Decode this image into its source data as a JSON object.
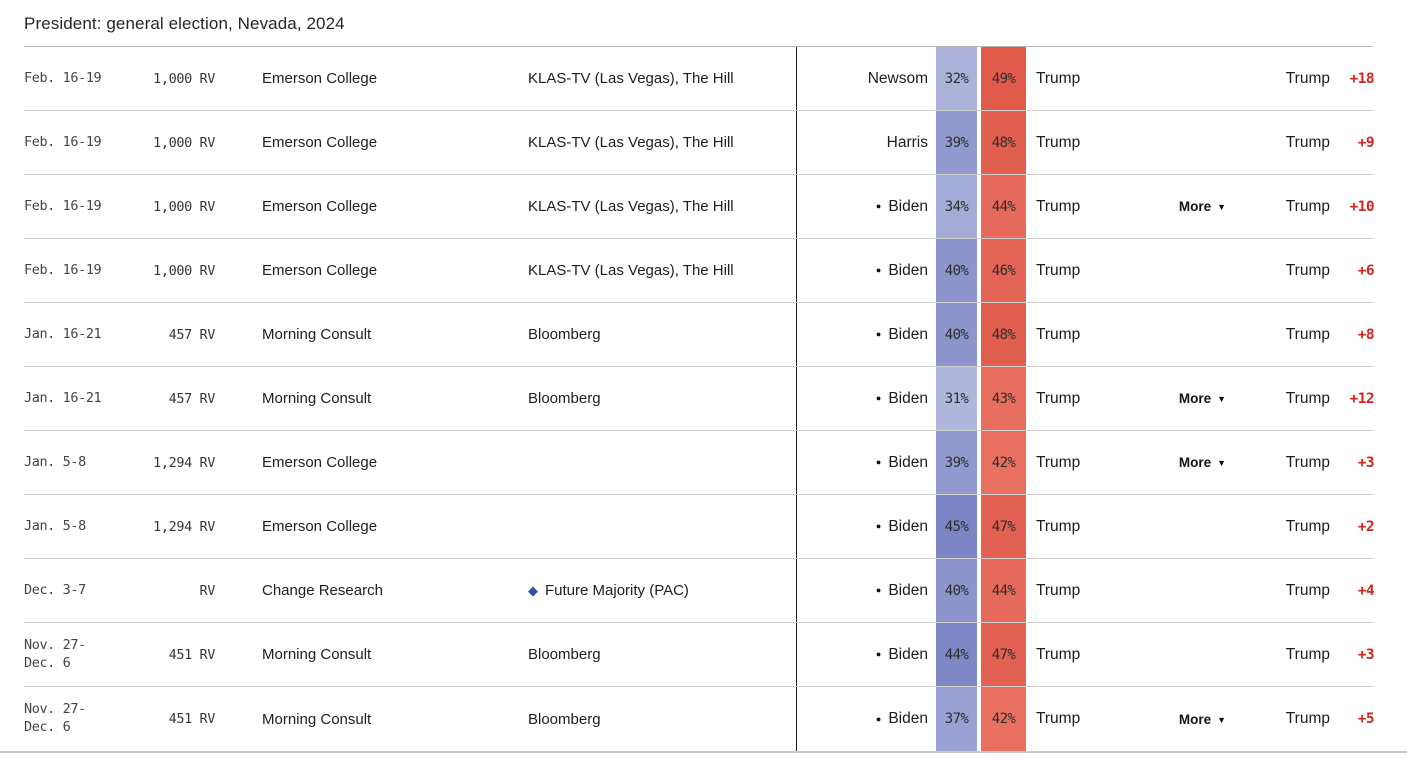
{
  "title": "President: general election, Nevada, 2024",
  "colors": {
    "accent_red": "#d0241c",
    "row_divider": "#cfcfcf",
    "table_top_border": "#b5b5b5",
    "vertical_rule": "#1c1c1c",
    "sponsor_diamond": "#3350a4"
  },
  "table": {
    "more_label": "More",
    "more_icon": "▼",
    "incumbent_dot_icon": "●",
    "sponsor_diamond_icon": "◆",
    "rows": [
      {
        "date": "Feb. 16-19",
        "sample": "1,000 RV",
        "pollster": "Emerson College",
        "sponsor": "KLAS-TV (Las Vegas), The Hill",
        "sponsor_icon": false,
        "dem_incumbent": false,
        "dem_name": "Newsom",
        "dem_pct": "32%",
        "rep_pct": "49%",
        "rep_name": "Trump",
        "more": false,
        "leader": "Trump",
        "margin": "+18",
        "dem_color": "#acb1da",
        "rep_color": "#e15b4b"
      },
      {
        "date": "Feb. 16-19",
        "sample": "1,000 RV",
        "pollster": "Emerson College",
        "sponsor": "KLAS-TV (Las Vegas), The Hill",
        "sponsor_icon": false,
        "dem_incumbent": false,
        "dem_name": "Harris",
        "dem_pct": "39%",
        "rep_pct": "48%",
        "rep_name": "Trump",
        "more": false,
        "leader": "Trump",
        "margin": "+9",
        "dem_color": "#9299cf",
        "rep_color": "#e25e4f"
      },
      {
        "date": "Feb. 16-19",
        "sample": "1,000 RV",
        "pollster": "Emerson College",
        "sponsor": "KLAS-TV (Las Vegas), The Hill",
        "sponsor_icon": false,
        "dem_incumbent": true,
        "dem_name": "Biden",
        "dem_pct": "34%",
        "rep_pct": "44%",
        "rep_name": "Trump",
        "more": true,
        "leader": "Trump",
        "margin": "+10",
        "dem_color": "#a5abd7",
        "rep_color": "#e66a5b"
      },
      {
        "date": "Feb. 16-19",
        "sample": "1,000 RV",
        "pollster": "Emerson College",
        "sponsor": "KLAS-TV (Las Vegas), The Hill",
        "sponsor_icon": false,
        "dem_incumbent": true,
        "dem_name": "Biden",
        "dem_pct": "40%",
        "rep_pct": "46%",
        "rep_name": "Trump",
        "more": false,
        "leader": "Trump",
        "margin": "+6",
        "dem_color": "#8d95cc",
        "rep_color": "#e46456"
      },
      {
        "date": "Jan. 16-21",
        "sample": "457 RV",
        "pollster": "Morning Consult",
        "sponsor": "Bloomberg",
        "sponsor_icon": false,
        "dem_incumbent": true,
        "dem_name": "Biden",
        "dem_pct": "40%",
        "rep_pct": "48%",
        "rep_name": "Trump",
        "more": false,
        "leader": "Trump",
        "margin": "+8",
        "dem_color": "#8d95cc",
        "rep_color": "#e25e4f"
      },
      {
        "date": "Jan. 16-21",
        "sample": "457 RV",
        "pollster": "Morning Consult",
        "sponsor": "Bloomberg",
        "sponsor_icon": false,
        "dem_incumbent": true,
        "dem_name": "Biden",
        "dem_pct": "31%",
        "rep_pct": "43%",
        "rep_name": "Trump",
        "more": true,
        "leader": "Trump",
        "margin": "+12",
        "dem_color": "#b0b5dc",
        "rep_color": "#e76d5e"
      },
      {
        "date": "Jan. 5-8",
        "sample": "1,294 RV",
        "pollster": "Emerson College",
        "sponsor": "",
        "sponsor_icon": false,
        "dem_incumbent": true,
        "dem_name": "Biden",
        "dem_pct": "39%",
        "rep_pct": "42%",
        "rep_name": "Trump",
        "more": true,
        "leader": "Trump",
        "margin": "+3",
        "dem_color": "#9299cf",
        "rep_color": "#e87060"
      },
      {
        "date": "Jan. 5-8",
        "sample": "1,294 RV",
        "pollster": "Emerson College",
        "sponsor": "",
        "sponsor_icon": false,
        "dem_incumbent": true,
        "dem_name": "Biden",
        "dem_pct": "45%",
        "rep_pct": "47%",
        "rep_name": "Trump",
        "more": false,
        "leader": "Trump",
        "margin": "+2",
        "dem_color": "#7c85c6",
        "rep_color": "#e36152"
      },
      {
        "date": "Dec. 3-7",
        "sample": "RV",
        "pollster": "Change Research",
        "sponsor": "Future Majority (PAC)",
        "sponsor_icon": true,
        "dem_incumbent": true,
        "dem_name": "Biden",
        "dem_pct": "40%",
        "rep_pct": "44%",
        "rep_name": "Trump",
        "more": false,
        "leader": "Trump",
        "margin": "+4",
        "dem_color": "#8d95cc",
        "rep_color": "#e66a5b"
      },
      {
        "date": "Nov. 27-\nDec. 6",
        "sample": "451 RV",
        "pollster": "Morning Consult",
        "sponsor": "Bloomberg",
        "sponsor_icon": false,
        "dem_incumbent": true,
        "dem_name": "Biden",
        "dem_pct": "44%",
        "rep_pct": "47%",
        "rep_name": "Trump",
        "more": false,
        "leader": "Trump",
        "margin": "+3",
        "dem_color": "#7f88c7",
        "rep_color": "#e36152"
      },
      {
        "date": "Nov. 27-\nDec. 6",
        "sample": "451 RV",
        "pollster": "Morning Consult",
        "sponsor": "Bloomberg",
        "sponsor_icon": false,
        "dem_incumbent": true,
        "dem_name": "Biden",
        "dem_pct": "37%",
        "rep_pct": "42%",
        "rep_name": "Trump",
        "more": true,
        "leader": "Trump",
        "margin": "+5",
        "dem_color": "#9aa1d2",
        "rep_color": "#e87060"
      }
    ]
  }
}
